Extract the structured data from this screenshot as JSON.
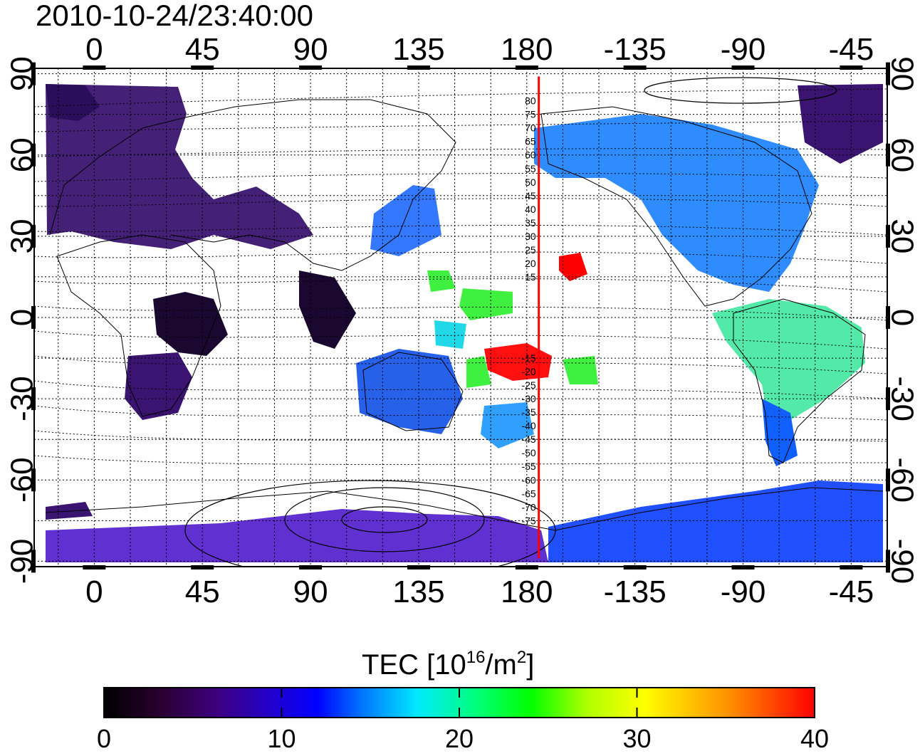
{
  "timestamp": "2010-10-24/23:40:00",
  "map": {
    "top_lon_ticks": [
      "0",
      "45",
      "90",
      "135",
      "180",
      "-135",
      "-90",
      "-45"
    ],
    "bottom_lon_ticks": [
      "0",
      "45",
      "90",
      "135",
      "180",
      "-135",
      "-90",
      "-45"
    ],
    "left_lat_ticks": [
      "90",
      "60",
      "30",
      "0",
      "-30",
      "-60",
      "-90"
    ],
    "right_lat_ticks": [
      "90",
      "60",
      "30",
      "0",
      "-30",
      "-60",
      "-90"
    ],
    "lon_tick_values": [
      0,
      45,
      90,
      135,
      180,
      225,
      270,
      315
    ],
    "lat_tick_values": [
      90,
      60,
      30,
      0,
      -30,
      -60,
      -90
    ],
    "meridian_longitude": 185,
    "meridian_color": "#ff0000",
    "meridian_labels": [
      "80",
      "75",
      "70",
      "65",
      "60",
      "55",
      "50",
      "45",
      "40",
      "35",
      "30",
      "25",
      "20",
      "15",
      "-15",
      "-20",
      "-25",
      "-30",
      "-35",
      "-40",
      "-45",
      "-50",
      "-55",
      "-60",
      "-65",
      "-70",
      "-75"
    ],
    "meridian_label_lats": [
      80,
      75,
      70,
      65,
      60,
      55,
      50,
      45,
      40,
      35,
      30,
      25,
      20,
      15,
      -15,
      -20,
      -25,
      -30,
      -35,
      -40,
      -45,
      -50,
      -55,
      -60,
      -65,
      -70,
      -75
    ],
    "lon_range": [
      -25,
      330
    ],
    "lat_range": [
      -92,
      92
    ]
  },
  "colorbar": {
    "title_prefix": "TEC  [10",
    "title_sup1": "16",
    "title_mid": "/m",
    "title_sup2": "2",
    "title_suffix": "]",
    "ticks": [
      "0",
      "10",
      "20",
      "30",
      "40"
    ],
    "tick_values": [
      0,
      10,
      20,
      30,
      40
    ],
    "range": [
      0,
      40
    ],
    "colors": [
      "#000000",
      "#2a0030",
      "#3c0080",
      "#2000d0",
      "#0000ff",
      "#0070ff",
      "#00e8ff",
      "#00ff80",
      "#00ff00",
      "#b0ff00",
      "#ffff00",
      "#ff9000",
      "#ff0000"
    ]
  }
}
